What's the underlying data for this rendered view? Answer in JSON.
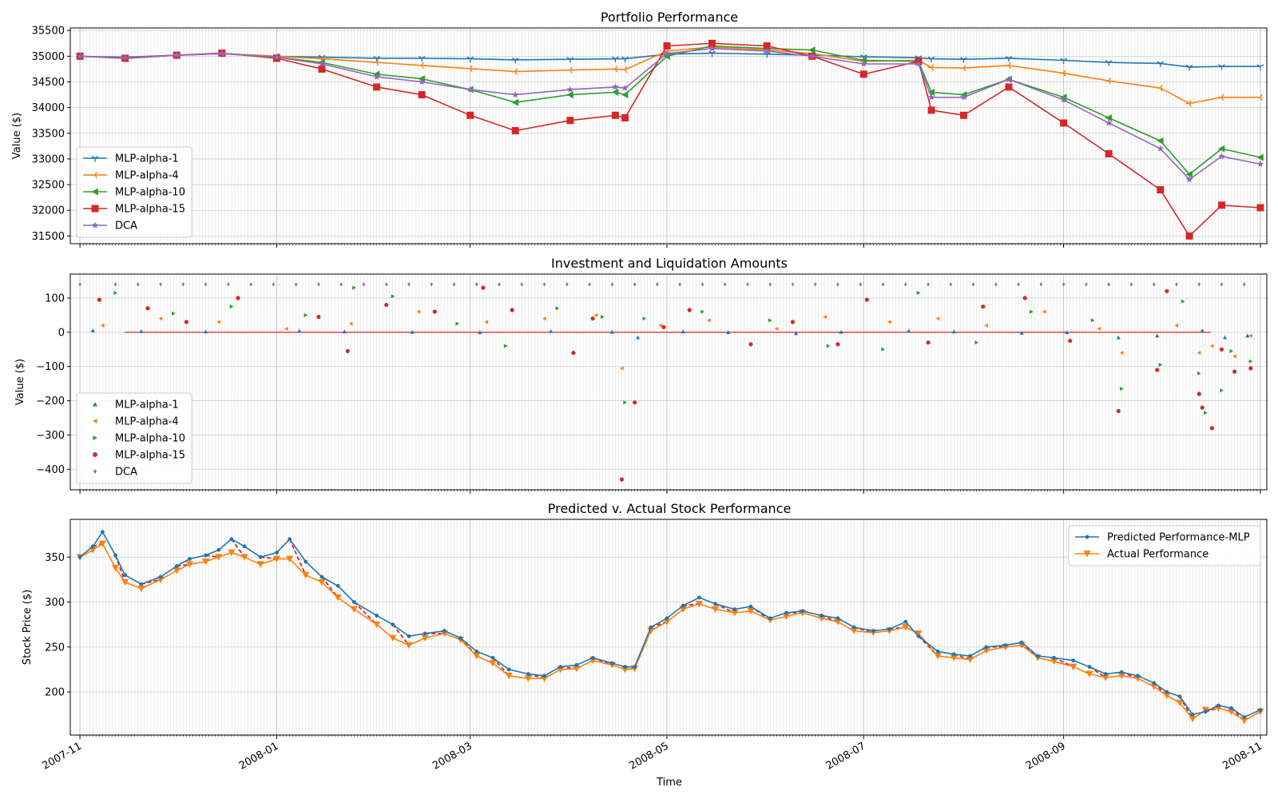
{
  "figure": {
    "xlabel": "Time"
  },
  "x_ticks": [
    "2007-11",
    "2008-01",
    "2008-03",
    "2008-05",
    "2008-07",
    "2008-09",
    "2008-11"
  ],
  "colors": {
    "MLP-alpha-1": "#1f77b4",
    "MLP-alpha-4": "#ff7f0e",
    "MLP-alpha-10": "#2ca02c",
    "MLP-alpha-15": "#d62728",
    "DCA": "#9467bd",
    "Predicted Performance-MLP": "#1f77b4",
    "Actual Performance": "#ff7f0e",
    "difference_link": "#d62728"
  },
  "chart_data": [
    {
      "id": "portfolio",
      "type": "line",
      "title": "Portfolio Performance",
      "xlabel": "",
      "ylabel": "Value ($)",
      "xlim": [
        "2007-10-29",
        "2008-11-03"
      ],
      "ylim": [
        31350,
        35550
      ],
      "yticks": [
        31500,
        32000,
        32500,
        33000,
        33500,
        34000,
        34500,
        35000,
        35500
      ],
      "grid": true,
      "legend": "lower-left",
      "x": [
        "2007-11-01",
        "2007-11-15",
        "2007-12-01",
        "2007-12-15",
        "2008-01-01",
        "2008-01-15",
        "2008-02-01",
        "2008-02-15",
        "2008-03-01",
        "2008-03-15",
        "2008-04-01",
        "2008-04-15",
        "2008-04-18",
        "2008-05-01",
        "2008-05-15",
        "2008-06-01",
        "2008-06-15",
        "2008-07-01",
        "2008-07-18",
        "2008-07-22",
        "2008-08-01",
        "2008-08-15",
        "2008-09-01",
        "2008-09-15",
        "2008-10-01",
        "2008-10-10",
        "2008-10-20",
        "2008-11-01"
      ],
      "series": [
        {
          "name": "MLP-alpha-1",
          "marker": "tri",
          "values": [
            35000,
            34980,
            35020,
            35050,
            35000,
            34980,
            34960,
            34960,
            34950,
            34930,
            34940,
            34950,
            34950,
            35040,
            35060,
            35040,
            35020,
            34990,
            34970,
            34950,
            34940,
            34960,
            34920,
            34880,
            34860,
            34790,
            34800,
            34800
          ]
        },
        {
          "name": "MLP-alpha-4",
          "marker": "tri-left",
          "values": [
            35000,
            34970,
            35020,
            35050,
            35000,
            34950,
            34880,
            34820,
            34760,
            34700,
            34730,
            34750,
            34740,
            35100,
            35180,
            35120,
            35050,
            34900,
            34920,
            34780,
            34770,
            34820,
            34670,
            34520,
            34380,
            34080,
            34200,
            34200
          ]
        },
        {
          "name": "MLP-alpha-10",
          "marker": "triangle-left",
          "values": [
            35000,
            34960,
            35020,
            35050,
            34980,
            34880,
            34650,
            34560,
            34350,
            34100,
            34250,
            34300,
            34250,
            35000,
            35200,
            35150,
            35120,
            34920,
            34900,
            34300,
            34250,
            34550,
            34200,
            33800,
            33350,
            32700,
            33200,
            33030
          ]
        },
        {
          "name": "MLP-alpha-15",
          "marker": "square",
          "values": [
            35000,
            34960,
            35020,
            35060,
            34960,
            34750,
            34400,
            34250,
            33850,
            33550,
            33750,
            33850,
            33800,
            35200,
            35250,
            35200,
            35000,
            34650,
            34900,
            33950,
            33850,
            34400,
            33700,
            33100,
            32400,
            31500,
            32100,
            32050
          ]
        },
        {
          "name": "DCA",
          "marker": "star",
          "values": [
            35000,
            34970,
            35020,
            35050,
            34980,
            34850,
            34600,
            34500,
            34350,
            34250,
            34350,
            34400,
            34380,
            35050,
            35150,
            35100,
            35000,
            34850,
            34850,
            34200,
            34200,
            34550,
            34150,
            33700,
            33200,
            32600,
            33050,
            32900
          ]
        }
      ]
    },
    {
      "id": "amounts",
      "type": "scatter",
      "title": "Investment and Liquidation Amounts",
      "xlabel": "",
      "ylabel": "Value ($)",
      "xlim": [
        "2007-10-29",
        "2008-11-03"
      ],
      "ylim": [
        -460,
        170
      ],
      "yticks": [
        -400,
        -300,
        -200,
        -100,
        0,
        100
      ],
      "grid": true,
      "legend": "lower-left",
      "series": [
        {
          "name": "MLP-alpha-1",
          "marker": "triangle-up",
          "x": [
            "2007-11-05",
            "2007-11-20",
            "2007-12-10",
            "2008-01-08",
            "2008-01-22",
            "2008-02-12",
            "2008-03-04",
            "2008-03-26",
            "2008-04-14",
            "2008-04-22",
            "2008-05-06",
            "2008-05-20",
            "2008-06-10",
            "2008-06-24",
            "2008-07-15",
            "2008-07-29",
            "2008-08-19",
            "2008-09-02",
            "2008-09-18",
            "2008-09-30",
            "2008-10-14",
            "2008-10-21",
            "2008-10-28"
          ],
          "y": [
            5,
            3,
            2,
            4,
            2,
            1,
            0,
            3,
            1,
            -15,
            2,
            0,
            -3,
            1,
            4,
            2,
            -2,
            0,
            -15,
            -10,
            5,
            -15,
            -10
          ]
        },
        {
          "name": "MLP-alpha-4",
          "marker": "triangle-left",
          "x": [
            "2007-11-08",
            "2007-11-26",
            "2007-12-14",
            "2008-01-04",
            "2008-01-24",
            "2008-02-14",
            "2008-03-06",
            "2008-03-24",
            "2008-04-09",
            "2008-04-17",
            "2008-04-29",
            "2008-05-14",
            "2008-06-04",
            "2008-06-19",
            "2008-07-09",
            "2008-07-24",
            "2008-08-08",
            "2008-08-26",
            "2008-09-12",
            "2008-09-19",
            "2008-10-06",
            "2008-10-13",
            "2008-10-17",
            "2008-10-24",
            "2008-10-29"
          ],
          "y": [
            20,
            40,
            30,
            10,
            25,
            60,
            30,
            40,
            50,
            -105,
            20,
            35,
            10,
            45,
            30,
            40,
            20,
            60,
            10,
            -60,
            20,
            -60,
            -40,
            -70,
            -10
          ]
        },
        {
          "name": "MLP-alpha-10",
          "marker": "triangle-right",
          "x": [
            "2007-11-12",
            "2007-11-30",
            "2007-12-18",
            "2008-01-10",
            "2008-01-25",
            "2008-02-06",
            "2008-02-26",
            "2008-03-12",
            "2008-03-28",
            "2008-04-11",
            "2008-04-18",
            "2008-04-24",
            "2008-05-12",
            "2008-06-02",
            "2008-06-20",
            "2008-07-07",
            "2008-07-18",
            "2008-08-05",
            "2008-08-22",
            "2008-09-10",
            "2008-09-19",
            "2008-10-01",
            "2008-10-08",
            "2008-10-13",
            "2008-10-15",
            "2008-10-20",
            "2008-10-23",
            "2008-10-29"
          ],
          "y": [
            115,
            55,
            75,
            50,
            130,
            105,
            25,
            -40,
            70,
            45,
            -205,
            40,
            60,
            35,
            -40,
            -50,
            115,
            -30,
            60,
            35,
            -165,
            -95,
            90,
            -120,
            -235,
            -170,
            -55,
            -85
          ]
        },
        {
          "name": "MLP-alpha-15",
          "marker": "circle",
          "x": [
            "2007-11-07",
            "2007-11-22",
            "2007-12-04",
            "2007-12-20",
            "2008-01-14",
            "2008-01-23",
            "2008-02-04",
            "2008-02-19",
            "2008-03-05",
            "2008-03-14",
            "2008-04-02",
            "2008-04-08",
            "2008-04-17",
            "2008-04-21",
            "2008-04-30",
            "2008-05-08",
            "2008-05-27",
            "2008-06-09",
            "2008-06-23",
            "2008-07-02",
            "2008-07-21",
            "2008-08-07",
            "2008-08-20",
            "2008-09-03",
            "2008-09-18",
            "2008-09-30",
            "2008-10-03",
            "2008-10-13",
            "2008-10-14",
            "2008-10-17",
            "2008-10-20",
            "2008-10-24",
            "2008-10-29"
          ],
          "y": [
            95,
            70,
            30,
            100,
            45,
            -55,
            80,
            60,
            130,
            65,
            -60,
            40,
            -430,
            -205,
            15,
            65,
            -35,
            30,
            -35,
            95,
            -30,
            75,
            100,
            -25,
            -230,
            -110,
            120,
            -180,
            -220,
            -280,
            -50,
            -115,
            -105
          ]
        },
        {
          "name": "DCA",
          "marker": "diamond",
          "x": [
            "2007-11-01",
            "2007-11-12",
            "2007-11-19",
            "2007-11-26",
            "2007-12-03",
            "2007-12-10",
            "2007-12-17",
            "2007-12-24",
            "2007-12-31",
            "2008-01-07",
            "2008-01-14",
            "2008-01-21",
            "2008-01-28",
            "2008-02-04",
            "2008-02-11",
            "2008-02-18",
            "2008-02-25",
            "2008-03-03",
            "2008-03-10",
            "2008-03-17",
            "2008-03-24",
            "2008-03-31",
            "2008-04-07",
            "2008-04-14",
            "2008-04-21",
            "2008-04-28",
            "2008-05-05",
            "2008-05-12",
            "2008-05-19",
            "2008-05-26",
            "2008-06-02",
            "2008-06-09",
            "2008-06-16",
            "2008-06-23",
            "2008-06-30",
            "2008-07-07",
            "2008-07-14",
            "2008-07-21",
            "2008-07-28",
            "2008-08-04",
            "2008-08-11",
            "2008-08-18",
            "2008-08-25",
            "2008-09-01",
            "2008-09-08",
            "2008-09-15",
            "2008-09-22",
            "2008-09-29",
            "2008-10-06",
            "2008-10-13",
            "2008-10-20",
            "2008-10-27"
          ],
          "y": [
            140,
            140,
            140,
            140,
            140,
            140,
            140,
            140,
            140,
            140,
            140,
            140,
            140,
            140,
            140,
            140,
            140,
            140,
            140,
            140,
            140,
            140,
            140,
            140,
            140,
            140,
            140,
            140,
            140,
            140,
            140,
            140,
            140,
            140,
            140,
            140,
            140,
            140,
            140,
            140,
            140,
            140,
            140,
            140,
            140,
            140,
            140,
            140,
            140,
            140,
            140,
            140
          ]
        }
      ]
    },
    {
      "id": "prediction",
      "type": "line",
      "title": "Predicted v. Actual Stock Performance",
      "xlabel": "Time",
      "ylabel": "Stock Price ($)",
      "xlim": [
        "2007-10-29",
        "2008-11-03"
      ],
      "ylim": [
        152,
        392
      ],
      "yticks": [
        200,
        250,
        300,
        350
      ],
      "grid": true,
      "legend": "top-right",
      "x": [
        "2007-11-01",
        "2007-11-05",
        "2007-11-08",
        "2007-11-12",
        "2007-11-15",
        "2007-11-20",
        "2007-11-26",
        "2007-12-01",
        "2007-12-05",
        "2007-12-10",
        "2007-12-14",
        "2007-12-18",
        "2007-12-22",
        "2007-12-27",
        "2008-01-01",
        "2008-01-05",
        "2008-01-10",
        "2008-01-15",
        "2008-01-20",
        "2008-01-25",
        "2008-02-01",
        "2008-02-06",
        "2008-02-11",
        "2008-02-16",
        "2008-02-22",
        "2008-02-27",
        "2008-03-03",
        "2008-03-08",
        "2008-03-13",
        "2008-03-19",
        "2008-03-24",
        "2008-03-29",
        "2008-04-03",
        "2008-04-08",
        "2008-04-14",
        "2008-04-18",
        "2008-04-21",
        "2008-04-26",
        "2008-05-01",
        "2008-05-06",
        "2008-05-11",
        "2008-05-16",
        "2008-05-22",
        "2008-05-27",
        "2008-06-02",
        "2008-06-07",
        "2008-06-12",
        "2008-06-18",
        "2008-06-23",
        "2008-06-28",
        "2008-07-04",
        "2008-07-09",
        "2008-07-14",
        "2008-07-18",
        "2008-07-24",
        "2008-07-29",
        "2008-08-03",
        "2008-08-08",
        "2008-08-14",
        "2008-08-19",
        "2008-08-24",
        "2008-08-29",
        "2008-09-04",
        "2008-09-09",
        "2008-09-14",
        "2008-09-19",
        "2008-09-24",
        "2008-09-29",
        "2008-10-03",
        "2008-10-07",
        "2008-10-11",
        "2008-10-15",
        "2008-10-19",
        "2008-10-23",
        "2008-10-27",
        "2008-11-01"
      ],
      "series": [
        {
          "name": "Predicted Performance-MLP",
          "marker": "circle",
          "values": [
            350,
            362,
            378,
            352,
            330,
            320,
            328,
            340,
            348,
            352,
            358,
            370,
            362,
            350,
            355,
            370,
            345,
            328,
            318,
            300,
            285,
            275,
            262,
            265,
            268,
            260,
            245,
            238,
            225,
            220,
            218,
            228,
            230,
            238,
            232,
            228,
            228,
            272,
            282,
            296,
            305,
            298,
            292,
            295,
            282,
            288,
            290,
            285,
            282,
            272,
            268,
            270,
            278,
            262,
            245,
            242,
            240,
            250,
            252,
            255,
            240,
            238,
            235,
            228,
            220,
            222,
            218,
            210,
            200,
            195,
            175,
            178,
            185,
            182,
            172,
            180
          ]
        },
        {
          "name": "Actual Performance",
          "marker": "triangle-down",
          "values": [
            350,
            358,
            365,
            338,
            322,
            315,
            325,
            335,
            342,
            345,
            350,
            355,
            350,
            342,
            348,
            348,
            330,
            322,
            305,
            292,
            275,
            260,
            252,
            260,
            265,
            258,
            240,
            232,
            218,
            215,
            215,
            225,
            226,
            235,
            230,
            225,
            226,
            268,
            278,
            292,
            298,
            292,
            288,
            290,
            280,
            284,
            288,
            282,
            278,
            268,
            266,
            268,
            272,
            265,
            240,
            238,
            236,
            246,
            250,
            252,
            238,
            234,
            228,
            220,
            216,
            218,
            215,
            206,
            196,
            188,
            170,
            180,
            182,
            178,
            168,
            178
          ]
        }
      ]
    }
  ]
}
